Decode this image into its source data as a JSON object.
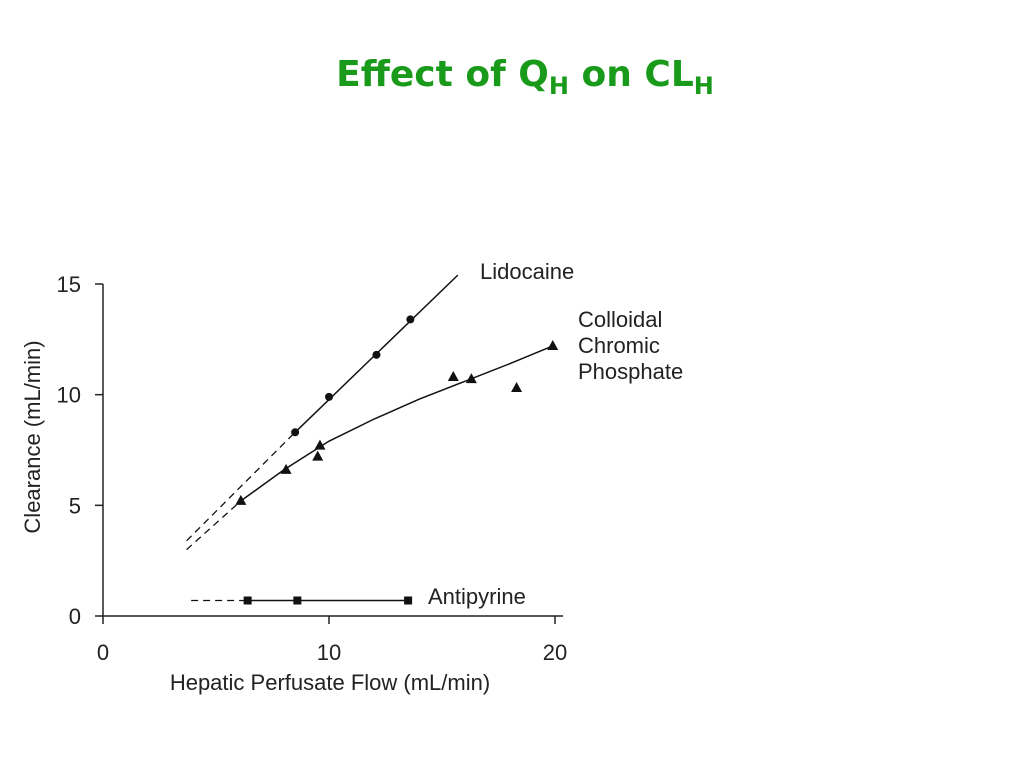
{
  "chart_data": {
    "type": "scatter",
    "title": [
      "Effect of Q",
      "H",
      " on CL",
      "H"
    ],
    "x_label": "Hepatic Perfusate Flow (mL/min)",
    "y_label": "Clearance (mL/min)",
    "xlim": [
      0,
      20
    ],
    "xticks": [
      0,
      10,
      20
    ],
    "ylim": [
      0,
      15
    ],
    "yticks": [
      0,
      5,
      10,
      15
    ],
    "grid": false,
    "series": [
      {
        "name": "Lidocaine",
        "color": "#111111",
        "marker": "circle",
        "x": [
          8.5,
          10,
          12.1,
          13.6
        ],
        "values": [
          8.3,
          9.9,
          11.8,
          13.4
        ],
        "fit_x": [
          8.5,
          15.7
        ],
        "fit_values": [
          8.3,
          15.4
        ],
        "extrap_x": [
          3.7,
          8.5
        ],
        "extrap_values": [
          3.4,
          8.3
        ]
      },
      {
        "name": "Colloidal Chromic Phosphate",
        "color": "#111111",
        "marker": "triangle",
        "x": [
          6.1,
          8.1,
          9.6,
          9.5,
          15.5,
          16.3,
          18.3,
          19.9
        ],
        "values": [
          5.2,
          6.6,
          7.7,
          7.2,
          10.8,
          10.7,
          10.3,
          12.2
        ],
        "fit_x": [
          6.1,
          8,
          10,
          12,
          14,
          16,
          18,
          19.9
        ],
        "fit_values": [
          5.2,
          6.6,
          7.9,
          8.9,
          9.8,
          10.6,
          11.4,
          12.2
        ],
        "extrap_x": [
          3.7,
          6.1
        ],
        "extrap_values": [
          3.0,
          5.2
        ]
      },
      {
        "name": "Antipyrine",
        "color": "#111111",
        "marker": "square",
        "x": [
          6.4,
          8.6,
          13.5
        ],
        "values": [
          0.7,
          0.7,
          0.7
        ],
        "fit_x": [
          6.4,
          13.5
        ],
        "fit_values": [
          0.7,
          0.7
        ],
        "extrap_x": [
          3.9,
          6.4
        ],
        "extrap_values": [
          0.7,
          0.7
        ]
      }
    ]
  }
}
